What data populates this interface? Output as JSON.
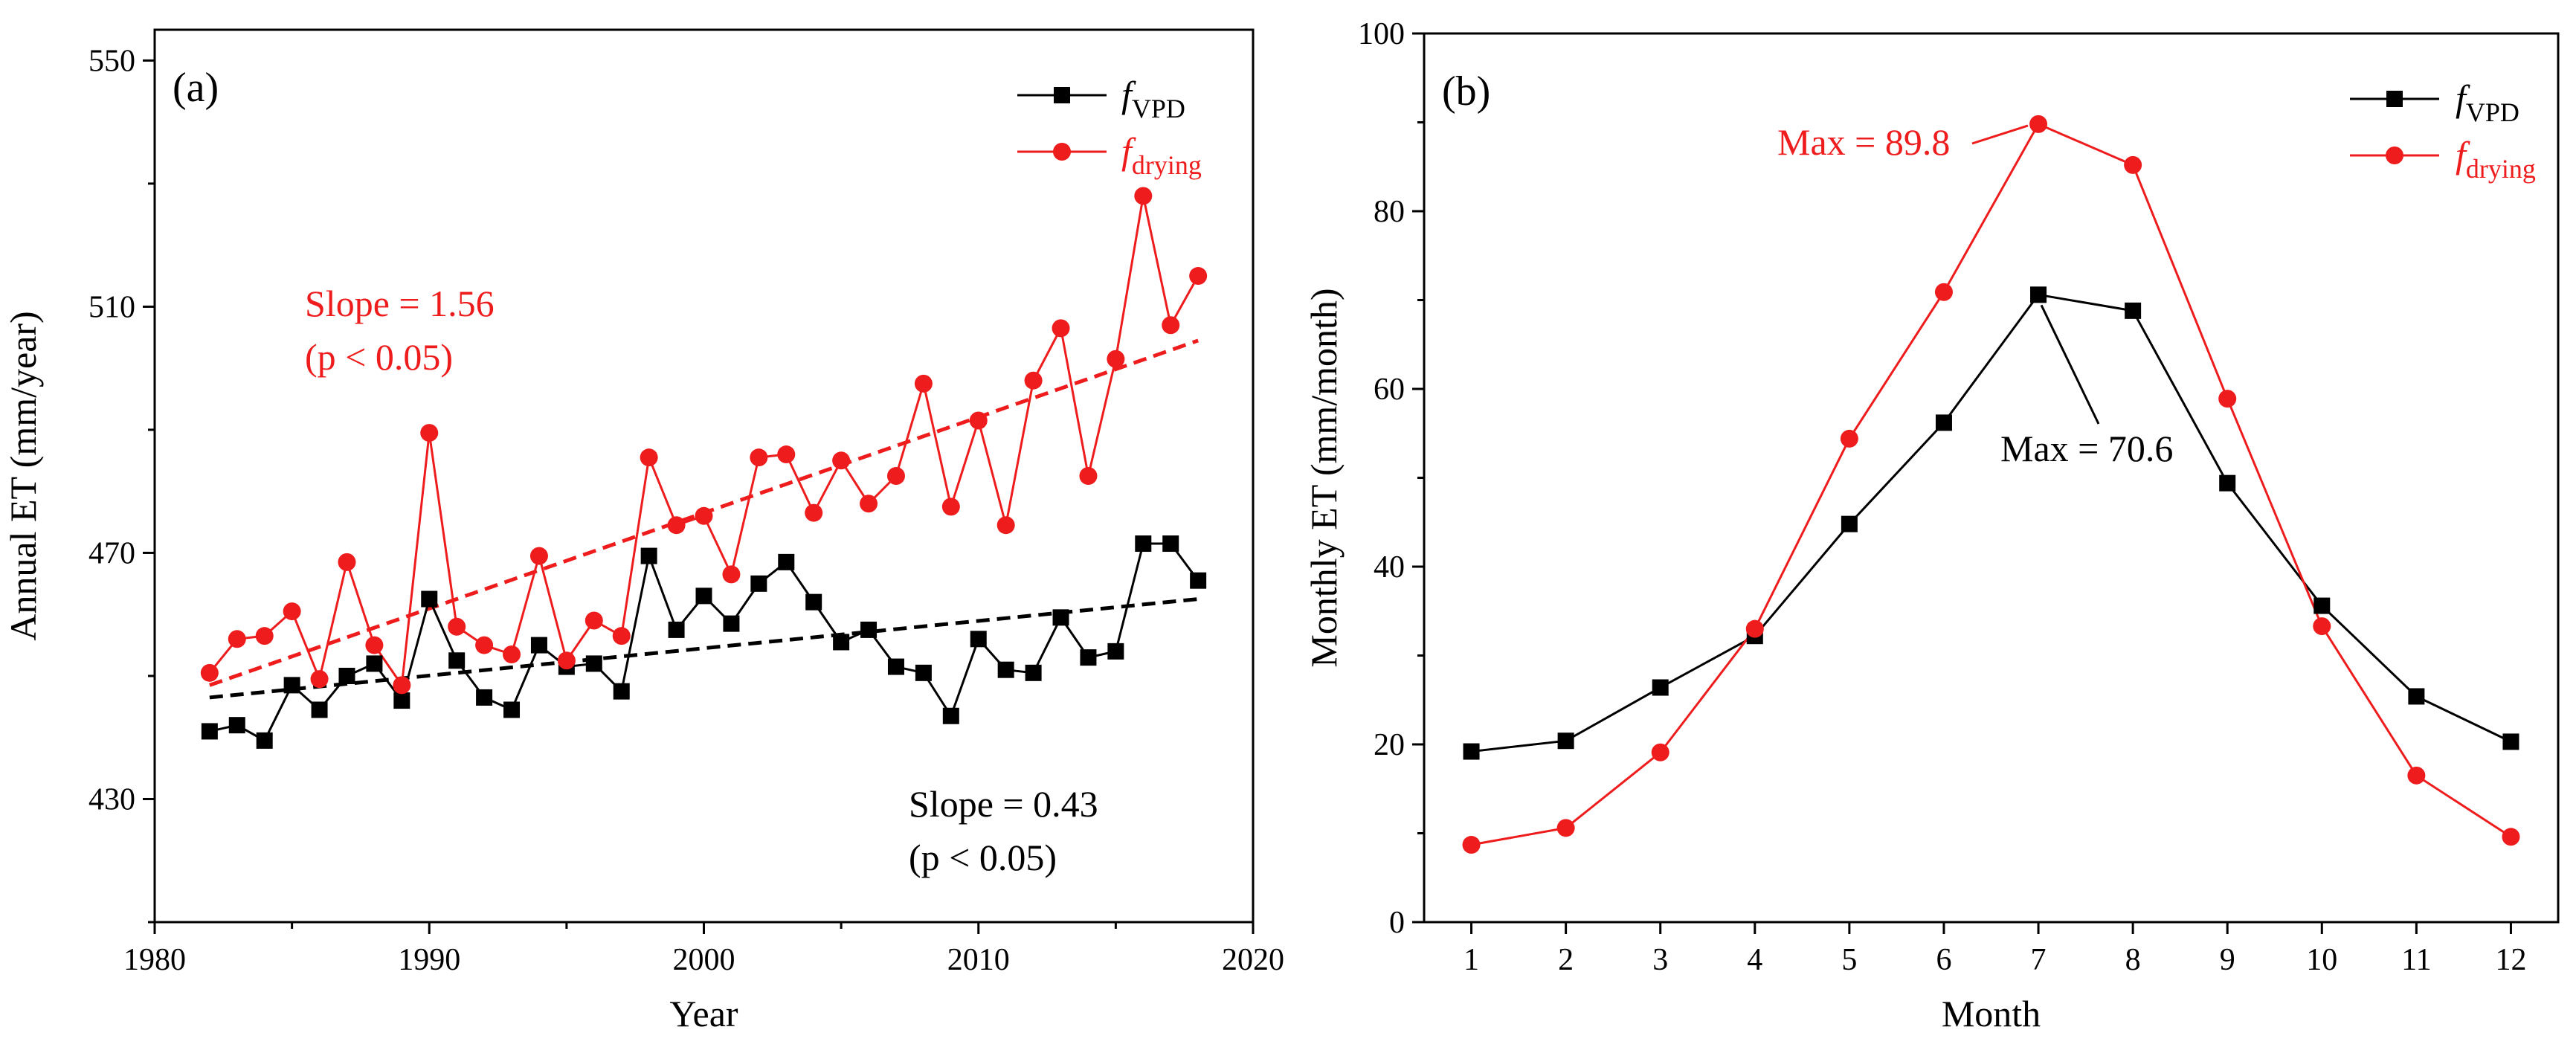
{
  "figure": {
    "background": "#ffffff"
  },
  "colors": {
    "vpd": "#000000",
    "drying": "#ee1c1c"
  },
  "chart_data": [
    {
      "type": "line",
      "panel_label": "(a)",
      "xlabel": "Year",
      "ylabel": "Annual ET (mm/year)",
      "xlim": [
        1980,
        2020
      ],
      "ylim": [
        410,
        555
      ],
      "xticks": [
        1980,
        1990,
        2000,
        2010,
        2020
      ],
      "yticks": [
        430,
        470,
        510,
        550
      ],
      "x": [
        1982,
        1983,
        1984,
        1985,
        1986,
        1987,
        1988,
        1989,
        1990,
        1991,
        1992,
        1993,
        1994,
        1995,
        1996,
        1997,
        1998,
        1999,
        2000,
        2001,
        2002,
        2003,
        2004,
        2005,
        2006,
        2007,
        2008,
        2009,
        2010,
        2011,
        2012,
        2013,
        2014,
        2015,
        2016,
        2017,
        2018
      ],
      "series": [
        {
          "id": "vpd",
          "legend_main": "f",
          "legend_sub": "VPD",
          "marker": "square",
          "values": [
            441,
            442,
            439.5,
            448.5,
            444.5,
            450,
            452,
            446,
            462.5,
            452.5,
            446.5,
            444.5,
            455,
            451.5,
            452,
            447.5,
            469.5,
            457.5,
            463,
            458.5,
            465,
            468.5,
            462,
            455.5,
            457.5,
            451.5,
            450.5,
            443.5,
            456,
            451,
            450.5,
            459.5,
            453,
            454,
            471.5,
            471.5,
            465.5
          ],
          "trend": {
            "from": [
              1982,
              446.5
            ],
            "to": [
              2018,
              462.5
            ]
          }
        },
        {
          "id": "drying",
          "legend_main": "f",
          "legend_sub": "drying",
          "marker": "circle",
          "values": [
            450.5,
            456,
            456.5,
            460.5,
            449.5,
            468.5,
            455,
            448.5,
            489.5,
            458,
            455,
            453.5,
            469.5,
            452.5,
            459,
            456.5,
            485.5,
            474.5,
            476,
            466.5,
            485.5,
            486,
            476.5,
            485,
            478,
            482.5,
            497.5,
            477.5,
            491.5,
            474.5,
            498,
            506.5,
            482.5,
            501.5,
            528,
            507,
            515
          ],
          "trend": {
            "from": [
              1982,
              448.5
            ],
            "to": [
              2018,
              504.5
            ]
          }
        }
      ],
      "annotations": [
        {
          "series": "drying",
          "lines": [
            "Slope = 1.56",
            "(p < 0.05)"
          ]
        },
        {
          "series": "vpd",
          "lines": [
            "Slope = 0.43",
            "(p < 0.05)"
          ]
        }
      ]
    },
    {
      "type": "line",
      "panel_label": "(b)",
      "xlabel": "Month",
      "ylabel": "Monthly ET (mm/month)",
      "xlim": [
        0.5,
        12.5
      ],
      "ylim": [
        0,
        100
      ],
      "xticks": [
        1,
        2,
        3,
        4,
        5,
        6,
        7,
        8,
        9,
        10,
        11,
        12
      ],
      "yticks": [
        0,
        20,
        40,
        60,
        80,
        100
      ],
      "x": [
        1,
        2,
        3,
        4,
        5,
        6,
        7,
        8,
        9,
        10,
        11,
        12
      ],
      "series": [
        {
          "id": "vpd",
          "legend_main": "f",
          "legend_sub": "VPD",
          "marker": "square",
          "values": [
            19.2,
            20.4,
            26.4,
            32.2,
            44.8,
            56.2,
            70.6,
            68.8,
            49.4,
            35.6,
            25.4,
            20.3
          ]
        },
        {
          "id": "drying",
          "legend_main": "f",
          "legend_sub": "drying",
          "marker": "circle",
          "values": [
            8.7,
            10.6,
            19.1,
            33.0,
            54.4,
            70.9,
            89.8,
            85.2,
            58.9,
            33.3,
            16.5,
            9.6
          ]
        }
      ],
      "annotations": [
        {
          "series": "drying",
          "text": "Max = 89.8",
          "point": [
            7,
            89.8
          ]
        },
        {
          "series": "vpd",
          "text": "Max = 70.6",
          "point": [
            7,
            70.6
          ]
        }
      ]
    }
  ]
}
